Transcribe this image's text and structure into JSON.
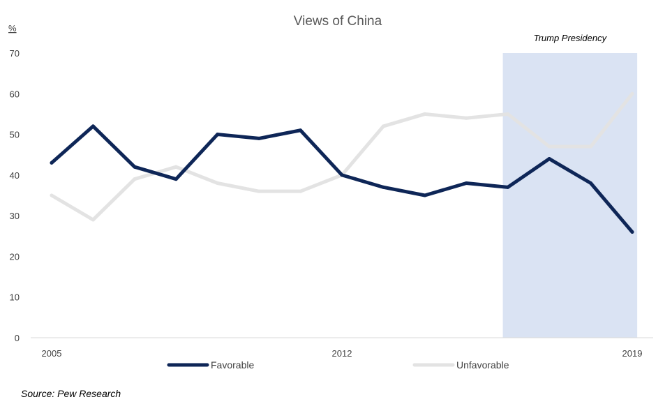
{
  "chart_data": {
    "type": "line",
    "title": "Views of China",
    "unit_label": "%",
    "x": [
      2005,
      2006,
      2007,
      2008,
      2009,
      2010,
      2011,
      2012,
      2013,
      2014,
      2015,
      2016,
      2017,
      2018,
      2019
    ],
    "x_tick_labels": [
      "2005",
      "2012",
      "2019"
    ],
    "x_tick_values": [
      2005,
      2012,
      2019
    ],
    "ylim": [
      0,
      70
    ],
    "y_ticks": [
      0,
      10,
      20,
      30,
      40,
      50,
      60,
      70
    ],
    "grid": false,
    "legend_position": "bottom",
    "series": [
      {
        "name": "Favorable",
        "color": "#0e2657",
        "values": [
          43,
          52,
          42,
          39,
          50,
          49,
          51,
          40,
          37,
          35,
          38,
          37,
          44,
          38,
          26
        ]
      },
      {
        "name": "Unfavorable",
        "color": "#e3e3e3",
        "values": [
          35,
          29,
          39,
          42,
          38,
          36,
          36,
          40,
          52,
          55,
          54,
          55,
          47,
          47,
          60
        ]
      }
    ],
    "highlight_band": {
      "label": "Trump Presidency",
      "x_start": 2016,
      "x_end": 2019,
      "color": "#dae3f3"
    },
    "source": "Source: Pew Research"
  }
}
